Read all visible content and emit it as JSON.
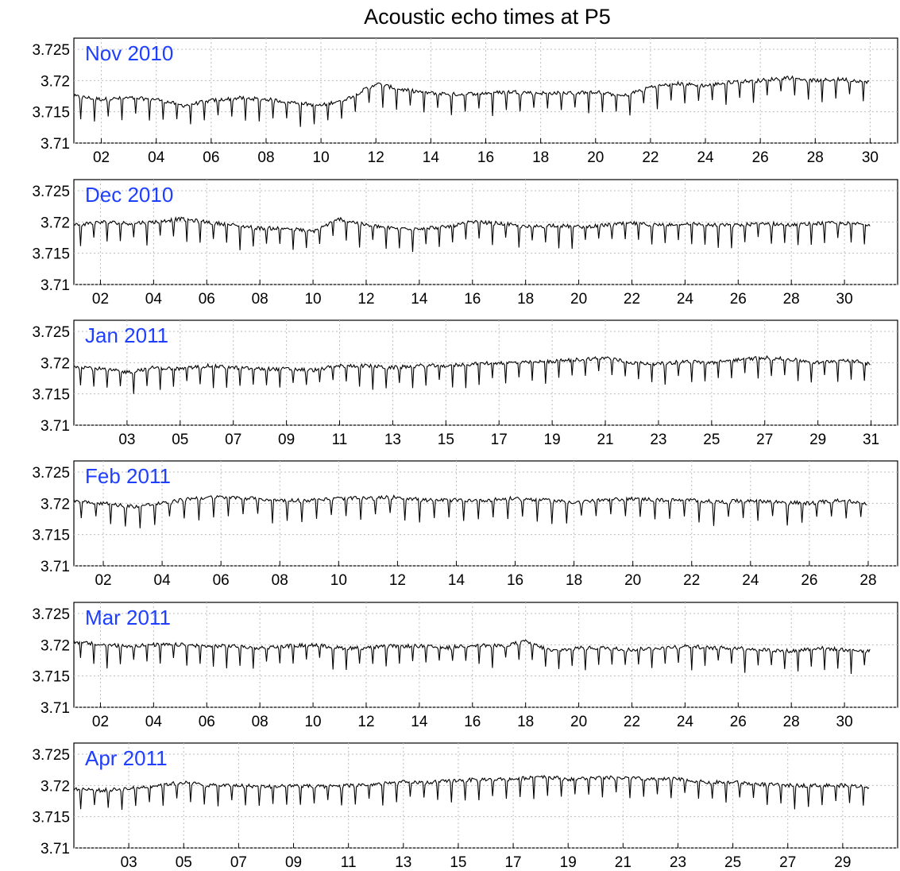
{
  "title": "Acoustic echo times at P5",
  "chart_data": [
    {
      "type": "line",
      "month_label": "Nov 2010",
      "days_in_month": 30,
      "xticks": [
        "02",
        "04",
        "06",
        "08",
        "10",
        "12",
        "14",
        "16",
        "18",
        "20",
        "22",
        "24",
        "26",
        "28",
        "30"
      ],
      "yticks": [
        "3.725",
        "3.72",
        "3.715",
        "3.71"
      ],
      "ylim": [
        3.71,
        3.725
      ],
      "grid": true,
      "series_color": "#000000",
      "x": [
        1,
        2,
        3,
        4,
        5,
        6,
        7,
        8,
        9,
        10,
        11,
        12,
        13,
        14,
        15,
        16,
        17,
        18,
        19,
        20,
        21,
        22,
        23,
        24,
        25,
        26,
        27,
        28,
        29,
        30
      ],
      "values": [
        3.7175,
        3.717,
        3.7172,
        3.717,
        3.716,
        3.7168,
        3.7172,
        3.717,
        3.7165,
        3.716,
        3.7172,
        3.7195,
        3.7185,
        3.718,
        3.7178,
        3.718,
        3.7182,
        3.718,
        3.718,
        3.7182,
        3.7175,
        3.719,
        3.7195,
        3.7192,
        3.7198,
        3.72,
        3.7205,
        3.72,
        3.7202,
        3.7198
      ]
    },
    {
      "type": "line",
      "month_label": "Dec 2010",
      "days_in_month": 31,
      "xticks": [
        "02",
        "04",
        "06",
        "08",
        "10",
        "12",
        "14",
        "16",
        "18",
        "20",
        "22",
        "24",
        "26",
        "28",
        "30"
      ],
      "yticks": [
        "3.725",
        "3.72",
        "3.715",
        "3.71"
      ],
      "ylim": [
        3.71,
        3.725
      ],
      "grid": true,
      "series_color": "#000000",
      "x": [
        1,
        2,
        3,
        4,
        5,
        6,
        7,
        8,
        9,
        10,
        11,
        12,
        13,
        14,
        15,
        16,
        17,
        18,
        19,
        20,
        21,
        22,
        23,
        24,
        25,
        26,
        27,
        28,
        29,
        30,
        31
      ],
      "values": [
        3.7195,
        3.72,
        3.7198,
        3.72,
        3.7205,
        3.72,
        3.7195,
        3.719,
        3.719,
        3.7185,
        3.7205,
        3.7195,
        3.719,
        3.719,
        3.7192,
        3.72,
        3.7198,
        3.7192,
        3.7195,
        3.7192,
        3.7195,
        3.7198,
        3.7195,
        3.7198,
        3.7195,
        3.7195,
        3.7198,
        3.7195,
        3.7198,
        3.7198,
        3.7196
      ]
    },
    {
      "type": "line",
      "month_label": "Jan 2011",
      "days_in_month": 31,
      "xticks": [
        "03",
        "05",
        "07",
        "09",
        "11",
        "13",
        "15",
        "17",
        "19",
        "21",
        "23",
        "25",
        "27",
        "29",
        "31"
      ],
      "yticks": [
        "3.725",
        "3.72",
        "3.715",
        "3.71"
      ],
      "ylim": [
        3.71,
        3.725
      ],
      "grid": true,
      "series_color": "#000000",
      "x": [
        1,
        2,
        3,
        4,
        5,
        6,
        7,
        8,
        9,
        10,
        11,
        12,
        13,
        14,
        15,
        16,
        17,
        18,
        19,
        20,
        21,
        22,
        23,
        24,
        25,
        26,
        27,
        28,
        29,
        30,
        31
      ],
      "values": [
        3.7195,
        3.719,
        3.7185,
        3.7192,
        3.719,
        3.7195,
        3.7192,
        3.719,
        3.719,
        3.7188,
        3.7195,
        3.7195,
        3.7192,
        3.7195,
        3.7195,
        3.7198,
        3.72,
        3.72,
        3.7202,
        3.7205,
        3.7208,
        3.72,
        3.7198,
        3.7202,
        3.72,
        3.7205,
        3.7208,
        3.7205,
        3.72,
        3.7205,
        3.7198
      ]
    },
    {
      "type": "line",
      "month_label": "Feb 2011",
      "days_in_month": 28,
      "xticks": [
        "02",
        "04",
        "06",
        "08",
        "10",
        "12",
        "14",
        "16",
        "18",
        "20",
        "22",
        "24",
        "26",
        "28"
      ],
      "yticks": [
        "3.725",
        "3.72",
        "3.715",
        "3.71"
      ],
      "ylim": [
        3.71,
        3.725
      ],
      "grid": true,
      "series_color": "#000000",
      "x": [
        1,
        2,
        3,
        4,
        5,
        6,
        7,
        8,
        9,
        10,
        11,
        12,
        13,
        14,
        15,
        16,
        17,
        18,
        19,
        20,
        21,
        22,
        23,
        24,
        25,
        26,
        27,
        28
      ],
      "values": [
        3.7205,
        3.72,
        3.7195,
        3.72,
        3.7208,
        3.721,
        3.7208,
        3.7205,
        3.7205,
        3.7208,
        3.7208,
        3.721,
        3.7205,
        3.7205,
        3.7205,
        3.7208,
        3.7205,
        3.7202,
        3.7205,
        3.7208,
        3.7205,
        3.7205,
        3.7202,
        3.7205,
        3.7202,
        3.72,
        3.7205,
        3.72
      ]
    },
    {
      "type": "line",
      "month_label": "Mar 2011",
      "days_in_month": 31,
      "xticks": [
        "02",
        "04",
        "06",
        "08",
        "10",
        "12",
        "14",
        "16",
        "18",
        "20",
        "22",
        "24",
        "26",
        "28",
        "30"
      ],
      "yticks": [
        "3.725",
        "3.72",
        "3.715",
        "3.71"
      ],
      "ylim": [
        3.71,
        3.725
      ],
      "grid": true,
      "series_color": "#000000",
      "x": [
        1,
        2,
        3,
        4,
        5,
        6,
        7,
        8,
        9,
        10,
        11,
        12,
        13,
        14,
        15,
        16,
        17,
        18,
        19,
        20,
        21,
        22,
        23,
        24,
        25,
        26,
        27,
        28,
        29,
        30,
        31
      ],
      "values": [
        3.7205,
        3.72,
        3.7198,
        3.72,
        3.72,
        3.7198,
        3.7198,
        3.7195,
        3.7198,
        3.72,
        3.7195,
        3.7195,
        3.7198,
        3.7198,
        3.7195,
        3.72,
        3.7198,
        3.7205,
        3.719,
        3.7195,
        3.7195,
        3.7192,
        3.7195,
        3.7198,
        3.7195,
        3.7195,
        3.7192,
        3.719,
        3.7195,
        3.7192,
        3.719
      ]
    },
    {
      "type": "line",
      "month_label": "Apr 2011",
      "days_in_month": 30,
      "xticks": [
        "03",
        "05",
        "07",
        "09",
        "11",
        "13",
        "15",
        "17",
        "19",
        "21",
        "23",
        "25",
        "27",
        "29"
      ],
      "yticks": [
        "3.725",
        "3.72",
        "3.715",
        "3.71"
      ],
      "ylim": [
        3.71,
        3.725
      ],
      "grid": true,
      "series_color": "#000000",
      "x": [
        1,
        2,
        3,
        4,
        5,
        6,
        7,
        8,
        9,
        10,
        11,
        12,
        13,
        14,
        15,
        16,
        17,
        18,
        19,
        20,
        21,
        22,
        23,
        24,
        25,
        26,
        27,
        28,
        29,
        30
      ],
      "values": [
        3.7195,
        3.7192,
        3.7195,
        3.72,
        3.7205,
        3.72,
        3.72,
        3.7198,
        3.72,
        3.7198,
        3.72,
        3.7202,
        3.7205,
        3.7205,
        3.7208,
        3.721,
        3.721,
        3.7215,
        3.721,
        3.7212,
        3.7212,
        3.721,
        3.721,
        3.7205,
        3.7205,
        3.7202,
        3.72,
        3.72,
        3.72,
        3.7198
      ]
    }
  ]
}
